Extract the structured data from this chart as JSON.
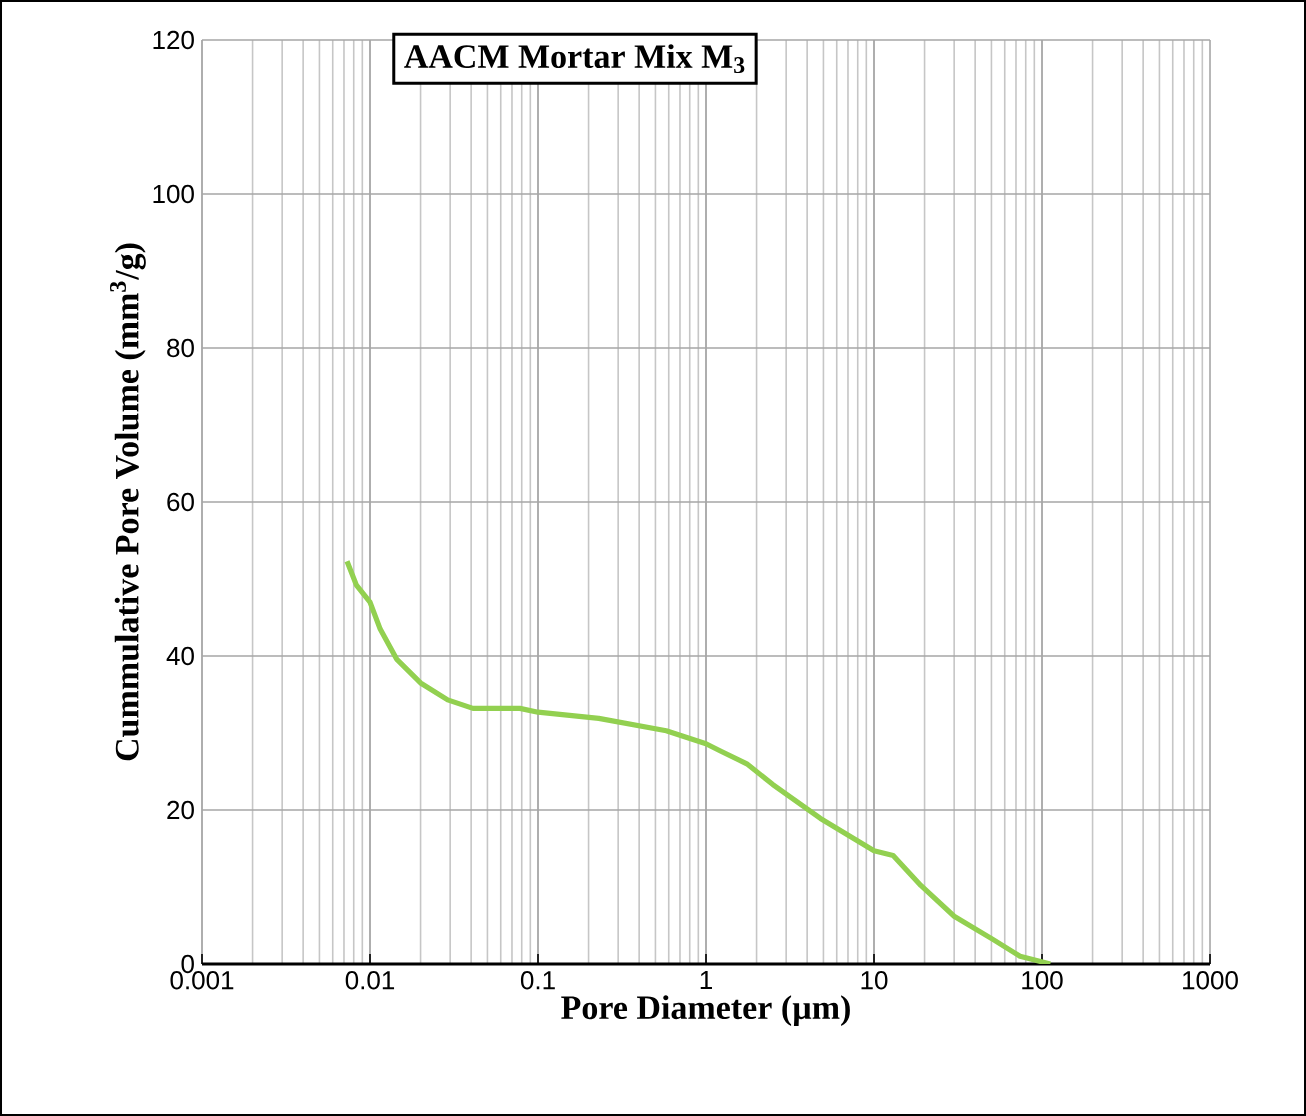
{
  "chart_data": {
    "type": "line",
    "title": "AACM Mortar Mix M$_{3}$",
    "xlabel": "Pore Diameter (µm)",
    "ylabel": "Cummulative Pore Volume (mm$^{3}$/g)",
    "log": "x",
    "xlim": [
      0.001,
      1000
    ],
    "ylim": [
      0,
      120
    ],
    "xticks": [
      {
        "value": 0.001,
        "label": "0.001"
      },
      {
        "value": 0.01,
        "label": "0.01"
      },
      {
        "value": 0.1,
        "label": "0.1"
      },
      {
        "value": 1,
        "label": "1"
      },
      {
        "value": 10,
        "label": "10"
      },
      {
        "value": 100,
        "label": "100"
      },
      {
        "value": 1000,
        "label": "1000"
      }
    ],
    "yticks": [
      0,
      20,
      40,
      60,
      80,
      100,
      120
    ],
    "grid": true,
    "marker": "none",
    "line_style": "solid",
    "series": [
      {
        "color": "#92d050",
        "x": [
          0.0073,
          0.0083,
          0.01,
          0.0115,
          0.0144,
          0.02,
          0.029,
          0.041,
          0.078,
          0.1,
          0.23,
          0.58,
          1,
          1.21,
          1.75,
          2.5,
          4.8,
          10,
          13,
          19,
          30,
          51,
          74,
          112
        ],
        "values": [
          52.3,
          49.2,
          47,
          43.5,
          39.6,
          36.5,
          34.3,
          33.2,
          33.2,
          32.7,
          31.9,
          30.3,
          28.6,
          27.7,
          26,
          23.3,
          18.9,
          14.7,
          14.1,
          10.2,
          6.2,
          3.2,
          1,
          0
        ]
      }
    ]
  }
}
